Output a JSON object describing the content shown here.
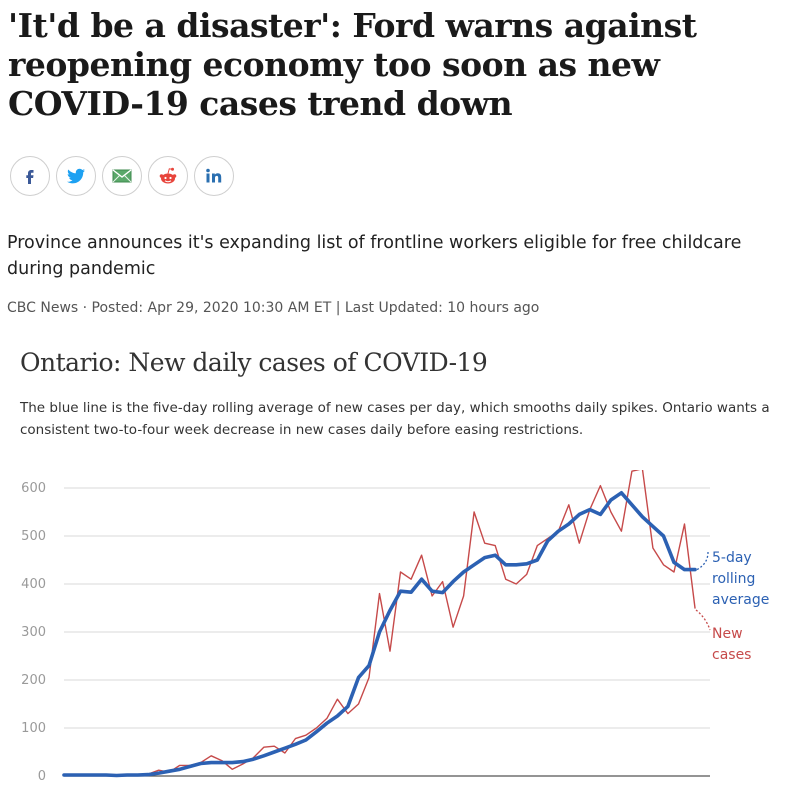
{
  "article": {
    "headline": "'It'd be a disaster': Ford warns against reopening economy too soon as new COVID-19 cases trend down",
    "deck": "Province announces it's expanding list of frontline workers eligible for free childcare during pandemic",
    "byline": "CBC News · Posted: Apr 29, 2020 10:30 AM ET | Last Updated: 10 hours ago"
  },
  "share": [
    {
      "icon": "facebook-icon",
      "color": "#3b5998"
    },
    {
      "icon": "twitter-icon",
      "color": "#1da1f2"
    },
    {
      "icon": "email-icon",
      "color": "#4a9c5a"
    },
    {
      "icon": "reddit-icon",
      "color": "#e8453c"
    },
    {
      "icon": "linkedin-icon",
      "color": "#2a6fb0"
    }
  ],
  "chart_data": {
    "type": "line",
    "title": "Ontario: New daily cases of COVID-19",
    "subtitle": "The blue line is the five-day rolling average of new cases per day, which smooths daily spikes. Ontario wants a consistent two-to-four week decrease in new cases daily before easing restrictions.",
    "ylim": [
      0,
      600
    ],
    "yticks": [
      0,
      100,
      200,
      300,
      400,
      500,
      600
    ],
    "grid": true,
    "series": [
      {
        "name": "New cases",
        "legend_lines": [
          "New",
          "cases"
        ],
        "color": "#c64a4a",
        "values": [
          3,
          2,
          2,
          1,
          2,
          1,
          2,
          3,
          4,
          12,
          8,
          22,
          22,
          28,
          42,
          32,
          14,
          25,
          38,
          60,
          62,
          48,
          78,
          85,
          100,
          120,
          160,
          130,
          150,
          205,
          380,
          260,
          425,
          410,
          460,
          375,
          405,
          310,
          375,
          550,
          485,
          480,
          410,
          400,
          420,
          480,
          495,
          510,
          565,
          485,
          555,
          605,
          550,
          510,
          635,
          640,
          475,
          440,
          425,
          525,
          350
        ]
      },
      {
        "name": "5-day rolling average",
        "legend_lines": [
          "5-day",
          "rolling",
          "average"
        ],
        "color": "#2c61b3",
        "values": [
          2,
          2,
          2,
          2,
          2,
          1,
          2,
          2,
          3,
          6,
          10,
          14,
          20,
          26,
          28,
          28,
          28,
          30,
          35,
          42,
          50,
          58,
          66,
          75,
          92,
          110,
          125,
          145,
          205,
          230,
          300,
          345,
          385,
          383,
          410,
          385,
          382,
          405,
          425,
          440,
          455,
          460,
          440,
          440,
          442,
          450,
          490,
          510,
          525,
          545,
          555,
          545,
          575,
          590,
          565,
          540,
          520,
          500,
          445,
          430,
          430
        ]
      }
    ]
  }
}
